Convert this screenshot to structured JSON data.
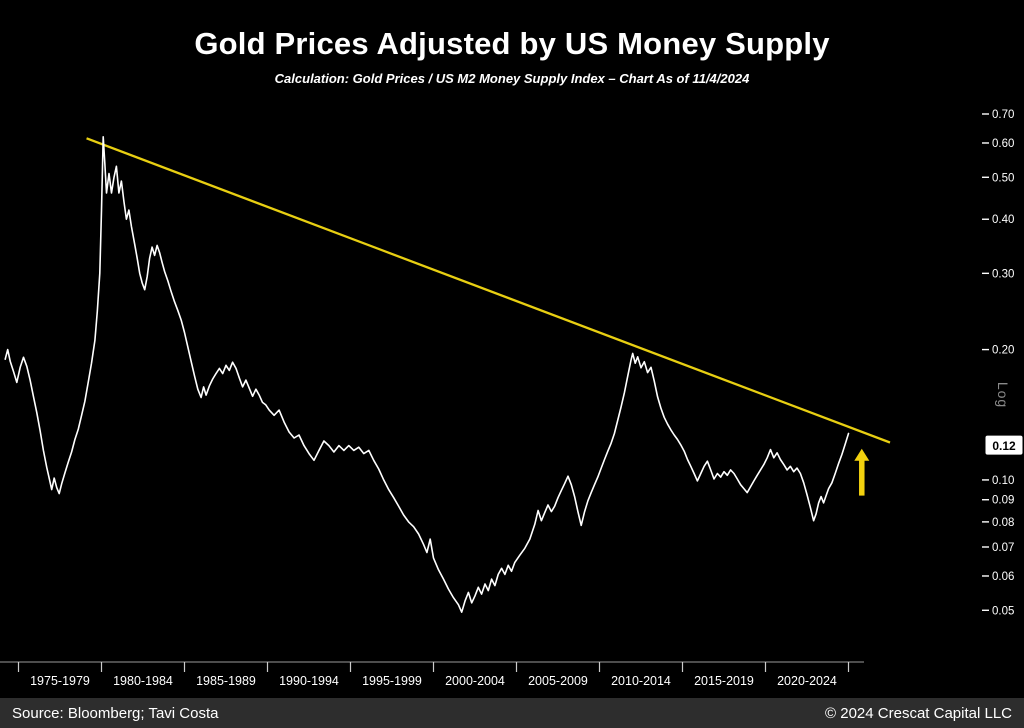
{
  "title": "Gold Prices Adjusted by US Money Supply",
  "subtitle": "Calculation: Gold Prices / US M2 Money Supply Index – Chart As of 11/4/2024",
  "footer": {
    "source": "Source: Bloomberg; Tavi Costa",
    "copyright": "© 2024 Crescat Capital LLC"
  },
  "colors": {
    "background": "#000000",
    "price_line": "#ffffff",
    "trend_line": "#e8cf12",
    "arrow": "#f2d10e",
    "axis_text": "#ffffff",
    "log_label": "#8a8a8a",
    "footer_bg": "#2d2d2d",
    "callout_bg": "#ffffff",
    "callout_text": "#000000"
  },
  "chart_data": {
    "type": "line",
    "title": "Gold Prices Adjusted by US Money Supply",
    "y_scale": "log",
    "x_axis": {
      "labels": [
        "1975-1979",
        "1980-1984",
        "1985-1989",
        "1990-1994",
        "1995-1999",
        "2000-2004",
        "2005-2009",
        "2010-2014",
        "2015-2019",
        "2020-2024"
      ],
      "boundary_years": [
        1975,
        1980,
        1985,
        1990,
        1995,
        2000,
        2005,
        2010,
        2015,
        2020,
        2025
      ]
    },
    "y_axis": {
      "side": "right",
      "scale_label": "Log",
      "tick_labels": [
        "0.70",
        "0.60",
        "0.50",
        "0.40",
        "0.30",
        "0.20",
        "0.10",
        "0.09",
        "0.08",
        "0.07",
        "0.06",
        "0.05"
      ],
      "range": [
        0.045,
        0.72
      ]
    },
    "current_value": {
      "label": "0.12",
      "value": 0.12
    },
    "trendline": {
      "from": [
        1979.1,
        0.615
      ],
      "to": [
        2027.5,
        0.122
      ]
    },
    "arrow": {
      "year": 2025.8,
      "value_tail": 0.092,
      "value_head": 0.118
    },
    "series": [
      {
        "name": "Gold Prices / US M2 Money Supply Index",
        "points": [
          [
            1974.2,
            0.19
          ],
          [
            1974.35,
            0.2
          ],
          [
            1974.5,
            0.188
          ],
          [
            1974.7,
            0.178
          ],
          [
            1974.9,
            0.168
          ],
          [
            1975.1,
            0.182
          ],
          [
            1975.3,
            0.192
          ],
          [
            1975.5,
            0.183
          ],
          [
            1975.7,
            0.17
          ],
          [
            1975.9,
            0.156
          ],
          [
            1976.1,
            0.143
          ],
          [
            1976.3,
            0.13
          ],
          [
            1976.5,
            0.117
          ],
          [
            1976.7,
            0.107
          ],
          [
            1976.9,
            0.099
          ],
          [
            1977.0,
            0.095
          ],
          [
            1977.15,
            0.101
          ],
          [
            1977.3,
            0.096
          ],
          [
            1977.45,
            0.093
          ],
          [
            1977.6,
            0.098
          ],
          [
            1977.8,
            0.104
          ],
          [
            1978.0,
            0.11
          ],
          [
            1978.2,
            0.116
          ],
          [
            1978.4,
            0.124
          ],
          [
            1978.6,
            0.131
          ],
          [
            1978.8,
            0.141
          ],
          [
            1979.0,
            0.152
          ],
          [
            1979.2,
            0.168
          ],
          [
            1979.4,
            0.186
          ],
          [
            1979.6,
            0.21
          ],
          [
            1979.75,
            0.245
          ],
          [
            1979.9,
            0.3
          ],
          [
            1980.0,
            0.42
          ],
          [
            1980.1,
            0.62
          ],
          [
            1980.2,
            0.54
          ],
          [
            1980.3,
            0.46
          ],
          [
            1980.45,
            0.51
          ],
          [
            1980.6,
            0.46
          ],
          [
            1980.75,
            0.5
          ],
          [
            1980.9,
            0.53
          ],
          [
            1981.05,
            0.46
          ],
          [
            1981.2,
            0.49
          ],
          [
            1981.35,
            0.44
          ],
          [
            1981.5,
            0.4
          ],
          [
            1981.65,
            0.42
          ],
          [
            1981.8,
            0.385
          ],
          [
            1982.0,
            0.35
          ],
          [
            1982.15,
            0.325
          ],
          [
            1982.3,
            0.3
          ],
          [
            1982.45,
            0.285
          ],
          [
            1982.6,
            0.275
          ],
          [
            1982.75,
            0.295
          ],
          [
            1982.9,
            0.325
          ],
          [
            1983.05,
            0.345
          ],
          [
            1983.2,
            0.33
          ],
          [
            1983.35,
            0.348
          ],
          [
            1983.5,
            0.335
          ],
          [
            1983.65,
            0.318
          ],
          [
            1983.8,
            0.303
          ],
          [
            1984.0,
            0.288
          ],
          [
            1984.2,
            0.272
          ],
          [
            1984.4,
            0.258
          ],
          [
            1984.6,
            0.246
          ],
          [
            1984.8,
            0.234
          ],
          [
            1985.0,
            0.219
          ],
          [
            1985.2,
            0.203
          ],
          [
            1985.4,
            0.188
          ],
          [
            1985.6,
            0.174
          ],
          [
            1985.8,
            0.162
          ],
          [
            1986.0,
            0.155
          ],
          [
            1986.15,
            0.164
          ],
          [
            1986.3,
            0.157
          ],
          [
            1986.5,
            0.165
          ],
          [
            1986.7,
            0.171
          ],
          [
            1986.9,
            0.176
          ],
          [
            1987.1,
            0.181
          ],
          [
            1987.3,
            0.176
          ],
          [
            1987.5,
            0.184
          ],
          [
            1987.7,
            0.179
          ],
          [
            1987.9,
            0.187
          ],
          [
            1988.1,
            0.181
          ],
          [
            1988.3,
            0.172
          ],
          [
            1988.5,
            0.164
          ],
          [
            1988.7,
            0.17
          ],
          [
            1988.9,
            0.163
          ],
          [
            1989.1,
            0.156
          ],
          [
            1989.3,
            0.162
          ],
          [
            1989.5,
            0.157
          ],
          [
            1989.7,
            0.151
          ],
          [
            1989.9,
            0.149
          ],
          [
            1990.1,
            0.145
          ],
          [
            1990.4,
            0.141
          ],
          [
            1990.7,
            0.145
          ],
          [
            1991.0,
            0.136
          ],
          [
            1991.3,
            0.129
          ],
          [
            1991.6,
            0.125
          ],
          [
            1991.9,
            0.127
          ],
          [
            1992.2,
            0.12
          ],
          [
            1992.5,
            0.115
          ],
          [
            1992.8,
            0.111
          ],
          [
            1993.1,
            0.117
          ],
          [
            1993.4,
            0.123
          ],
          [
            1993.7,
            0.12
          ],
          [
            1994.0,
            0.116
          ],
          [
            1994.3,
            0.12
          ],
          [
            1994.6,
            0.117
          ],
          [
            1994.9,
            0.12
          ],
          [
            1995.2,
            0.117
          ],
          [
            1995.5,
            0.119
          ],
          [
            1995.8,
            0.115
          ],
          [
            1996.1,
            0.117
          ],
          [
            1996.4,
            0.111
          ],
          [
            1996.7,
            0.106
          ],
          [
            1997.0,
            0.1
          ],
          [
            1997.3,
            0.095
          ],
          [
            1997.6,
            0.091
          ],
          [
            1997.9,
            0.087
          ],
          [
            1998.2,
            0.083
          ],
          [
            1998.5,
            0.08
          ],
          [
            1998.8,
            0.078
          ],
          [
            1999.1,
            0.075
          ],
          [
            1999.4,
            0.071
          ],
          [
            1999.6,
            0.068
          ],
          [
            1999.8,
            0.073
          ],
          [
            2000.0,
            0.066
          ],
          [
            2000.3,
            0.062
          ],
          [
            2000.6,
            0.059
          ],
          [
            2000.9,
            0.056
          ],
          [
            2001.2,
            0.0535
          ],
          [
            2001.5,
            0.0515
          ],
          [
            2001.7,
            0.0495
          ],
          [
            2001.9,
            0.0525
          ],
          [
            2002.1,
            0.055
          ],
          [
            2002.3,
            0.052
          ],
          [
            2002.5,
            0.054
          ],
          [
            2002.7,
            0.0565
          ],
          [
            2002.9,
            0.0545
          ],
          [
            2003.1,
            0.0575
          ],
          [
            2003.3,
            0.0555
          ],
          [
            2003.5,
            0.059
          ],
          [
            2003.7,
            0.057
          ],
          [
            2003.9,
            0.0605
          ],
          [
            2004.1,
            0.0625
          ],
          [
            2004.3,
            0.0605
          ],
          [
            2004.5,
            0.0635
          ],
          [
            2004.7,
            0.0615
          ],
          [
            2004.9,
            0.0645
          ],
          [
            2005.2,
            0.067
          ],
          [
            2005.5,
            0.0695
          ],
          [
            2005.8,
            0.073
          ],
          [
            2006.1,
            0.079
          ],
          [
            2006.3,
            0.085
          ],
          [
            2006.5,
            0.0805
          ],
          [
            2006.7,
            0.084
          ],
          [
            2006.9,
            0.0875
          ],
          [
            2007.1,
            0.0845
          ],
          [
            2007.3,
            0.087
          ],
          [
            2007.5,
            0.091
          ],
          [
            2007.7,
            0.0945
          ],
          [
            2007.9,
            0.098
          ],
          [
            2008.1,
            0.102
          ],
          [
            2008.3,
            0.0975
          ],
          [
            2008.5,
            0.0915
          ],
          [
            2008.7,
            0.0845
          ],
          [
            2008.9,
            0.0785
          ],
          [
            2009.1,
            0.0845
          ],
          [
            2009.3,
            0.0895
          ],
          [
            2009.5,
            0.0935
          ],
          [
            2009.7,
            0.0975
          ],
          [
            2009.9,
            0.1015
          ],
          [
            2010.1,
            0.1065
          ],
          [
            2010.3,
            0.1115
          ],
          [
            2010.5,
            0.1165
          ],
          [
            2010.7,
            0.1215
          ],
          [
            2010.9,
            0.128
          ],
          [
            2011.1,
            0.1375
          ],
          [
            2011.3,
            0.1475
          ],
          [
            2011.5,
            0.159
          ],
          [
            2011.7,
            0.1735
          ],
          [
            2011.9,
            0.189
          ],
          [
            2012.0,
            0.196
          ],
          [
            2012.15,
            0.186
          ],
          [
            2012.3,
            0.1925
          ],
          [
            2012.5,
            0.1815
          ],
          [
            2012.7,
            0.1875
          ],
          [
            2012.9,
            0.177
          ],
          [
            2013.1,
            0.182
          ],
          [
            2013.3,
            0.169
          ],
          [
            2013.5,
            0.1555
          ],
          [
            2013.7,
            0.1465
          ],
          [
            2013.9,
            0.1395
          ],
          [
            2014.1,
            0.1345
          ],
          [
            2014.3,
            0.1305
          ],
          [
            2014.5,
            0.127
          ],
          [
            2014.7,
            0.124
          ],
          [
            2014.9,
            0.1205
          ],
          [
            2015.1,
            0.1165
          ],
          [
            2015.3,
            0.1115
          ],
          [
            2015.5,
            0.1075
          ],
          [
            2015.7,
            0.1035
          ],
          [
            2015.9,
            0.0995
          ],
          [
            2016.1,
            0.1035
          ],
          [
            2016.3,
            0.1075
          ],
          [
            2016.5,
            0.1105
          ],
          [
            2016.7,
            0.1055
          ],
          [
            2016.9,
            0.1005
          ],
          [
            2017.1,
            0.1035
          ],
          [
            2017.3,
            0.1015
          ],
          [
            2017.5,
            0.1045
          ],
          [
            2017.7,
            0.1025
          ],
          [
            2017.9,
            0.1055
          ],
          [
            2018.1,
            0.1035
          ],
          [
            2018.3,
            0.1005
          ],
          [
            2018.5,
            0.0975
          ],
          [
            2018.7,
            0.0955
          ],
          [
            2018.9,
            0.0935
          ],
          [
            2019.1,
            0.0965
          ],
          [
            2019.3,
            0.0995
          ],
          [
            2019.5,
            0.1025
          ],
          [
            2019.7,
            0.1055
          ],
          [
            2019.9,
            0.1085
          ],
          [
            2020.1,
            0.1125
          ],
          [
            2020.3,
            0.1175
          ],
          [
            2020.5,
            0.1125
          ],
          [
            2020.7,
            0.1155
          ],
          [
            2020.9,
            0.1115
          ],
          [
            2021.1,
            0.1085
          ],
          [
            2021.3,
            0.1055
          ],
          [
            2021.5,
            0.1075
          ],
          [
            2021.7,
            0.1045
          ],
          [
            2021.9,
            0.1065
          ],
          [
            2022.1,
            0.1035
          ],
          [
            2022.3,
            0.0985
          ],
          [
            2022.5,
            0.0925
          ],
          [
            2022.7,
            0.0865
          ],
          [
            2022.9,
            0.0805
          ],
          [
            2023.05,
            0.0835
          ],
          [
            2023.2,
            0.0885
          ],
          [
            2023.35,
            0.0915
          ],
          [
            2023.5,
            0.0885
          ],
          [
            2023.65,
            0.092
          ],
          [
            2023.8,
            0.0955
          ],
          [
            2024.0,
            0.0985
          ],
          [
            2024.2,
            0.1035
          ],
          [
            2024.4,
            0.109
          ],
          [
            2024.6,
            0.1145
          ],
          [
            2024.8,
            0.121
          ],
          [
            2025.0,
            0.128
          ]
        ]
      }
    ]
  }
}
